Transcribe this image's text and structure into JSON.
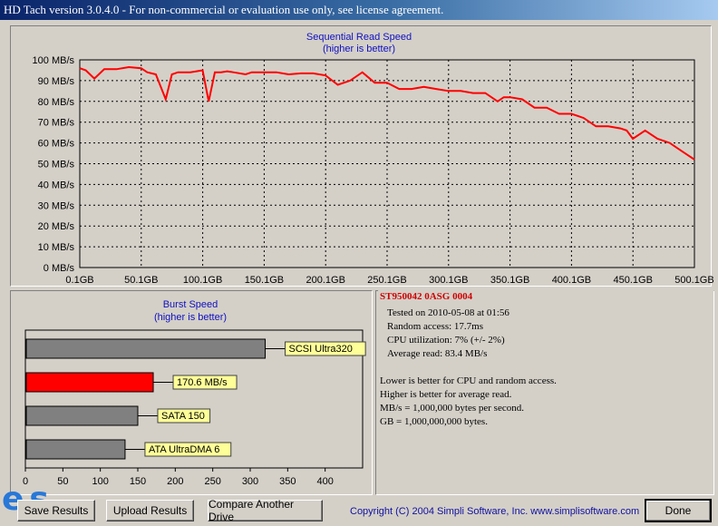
{
  "window": {
    "title": "HD Tach version 3.0.4.0  - For non-commercial or evaluation use only, see license agreement."
  },
  "read_chart": {
    "title": "Sequential Read Speed",
    "subtitle": "(higher is better)",
    "y_ticks": [
      "100 MB/s",
      "90 MB/s",
      "80 MB/s",
      "70 MB/s",
      "60 MB/s",
      "50 MB/s",
      "40 MB/s",
      "30 MB/s",
      "20 MB/s",
      "10 MB/s",
      "0 MB/s"
    ],
    "x_ticks": [
      "0.1GB",
      "50.1GB",
      "100.1GB",
      "150.1GB",
      "200.1GB",
      "250.1GB",
      "300.1GB",
      "350.1GB",
      "400.1GB",
      "450.1GB",
      "500.1GB"
    ],
    "line_color": "#ff0000"
  },
  "burst_chart": {
    "title": "Burst Speed",
    "subtitle": "(higher is better)",
    "x_ticks": [
      "0",
      "50",
      "100",
      "150",
      "200",
      "250",
      "300",
      "350",
      "400"
    ]
  },
  "info": {
    "device": "ST950042 0ASG 0004",
    "tested": "Tested on 2010-05-08 at 01:56",
    "random_access": "Random access: 17.7ms",
    "cpu": "CPU utilization: 7% (+/- 2%)",
    "average_read": "Average read: 83.4 MB/s",
    "note1": "Lower is better for CPU and random access.",
    "note2": "Higher is better for average read.",
    "note3": "MB/s = 1,000,000 bytes per second.",
    "note4": "GB = 1,000,000,000 bytes."
  },
  "buttons": {
    "save": "Save Results",
    "upload": "Upload Results",
    "compare": "Compare Another Drive",
    "done": "Done"
  },
  "logo_text": "es",
  "copyright": "Copyright (C) 2004 Simpli Software, Inc. www.simplisoftware.com",
  "chart_data": [
    {
      "type": "line",
      "title": "Sequential Read Speed",
      "subtitle": "(higher is better)",
      "xlabel": "",
      "ylabel": "",
      "xlim": [
        0.1,
        500.1
      ],
      "ylim": [
        0,
        100
      ],
      "grid": true,
      "series": [
        {
          "color": "#ff0000",
          "x": [
            0.1,
            5,
            12,
            20,
            30,
            40,
            50,
            55,
            62,
            70,
            75,
            80,
            90,
            100,
            105,
            110,
            115,
            120,
            125,
            135,
            140,
            150,
            160,
            170,
            180,
            190,
            200,
            210,
            220,
            230,
            240,
            245,
            250,
            260,
            270,
            280,
            290,
            300,
            310,
            320,
            330,
            340,
            345,
            350,
            360,
            370,
            380,
            390,
            400,
            410,
            420,
            430,
            440,
            445,
            450,
            460,
            470,
            480,
            490,
            500.1
          ],
          "y": [
            96,
            95,
            91,
            95.5,
            95.5,
            96.5,
            96,
            94,
            93,
            81,
            93,
            94,
            94,
            95,
            80,
            94,
            94,
            94.5,
            94,
            93,
            94,
            94,
            94,
            93,
            93.5,
            93.5,
            92.5,
            88,
            90,
            94,
            89,
            89,
            89,
            86,
            86,
            87,
            86,
            85,
            85,
            84,
            84,
            80,
            82,
            82,
            81,
            77,
            77,
            74,
            74,
            72,
            68,
            68,
            67,
            66,
            62,
            66,
            62,
            60,
            56,
            52
          ]
        }
      ]
    },
    {
      "type": "bar",
      "orientation": "horizontal",
      "title": "Burst Speed",
      "subtitle": "(higher is better)",
      "categories": [
        "SCSI Ultra320",
        "170.6 MB/s",
        "SATA 150",
        "ATA UltraDMA 6"
      ],
      "values": [
        320,
        170.6,
        150,
        133
      ],
      "colors": [
        "#808080",
        "#ff0000",
        "#808080",
        "#808080"
      ],
      "xlim": [
        0,
        450
      ]
    }
  ]
}
